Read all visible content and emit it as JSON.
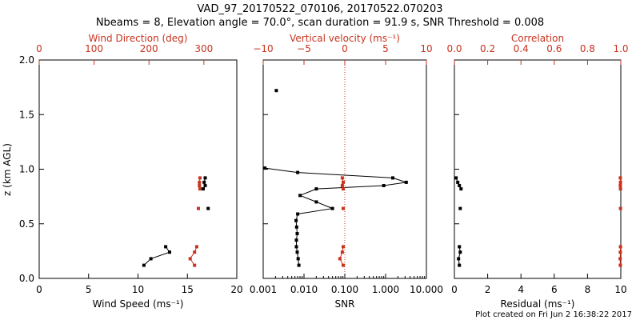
{
  "colors": {
    "primary": "#000000",
    "secondary": "#c8321e"
  },
  "chart_data": {
    "type": "scatter",
    "title": "VAD_97_20170522_070106, 20170522.070203",
    "subtitle": "Nbeams = 8, Elevation angle = 70.0°, scan duration = 91.9 s, SNR Threshold = 0.008",
    "footer": "Plot created on Fri Jun  2 16:38:22 2017",
    "ylabel": "z (km AGL)",
    "ylim": [
      0,
      2
    ],
    "yticks": [
      "0.0",
      "0.5",
      "1.0",
      "1.5",
      "2.0"
    ],
    "panels": [
      {
        "name": "wind",
        "bottom_axis": {
          "label": "Wind Speed (ms⁻¹)",
          "range": [
            0,
            20
          ],
          "ticks": [
            "0",
            "5",
            "10",
            "15",
            "20"
          ],
          "tick_values": [
            0,
            5,
            10,
            15,
            20
          ]
        },
        "top_axis": {
          "label": "Wind Direction (deg)",
          "range": [
            0,
            360
          ],
          "ticks": [
            "0",
            "100",
            "200",
            "300"
          ],
          "tick_values": [
            0,
            100,
            200,
            300
          ]
        },
        "series": [
          {
            "name": "Wind Speed",
            "axis": "bottom",
            "color": "#000000",
            "segments": [
              {
                "x": [
                  10.6,
                  11.3,
                  13.2,
                  12.8
                ],
                "z": [
                  0.12,
                  0.18,
                  0.24,
                  0.29
                ]
              },
              {
                "x": [
                  17.1
                ],
                "z": [
                  0.64
                ]
              },
              {
                "x": [
                  16.6,
                  16.8,
                  16.7,
                  16.8
                ],
                "z": [
                  0.82,
                  0.85,
                  0.88,
                  0.92
                ]
              }
            ]
          },
          {
            "name": "Wind Direction",
            "axis": "top",
            "color": "#c8321e",
            "segments": [
              {
                "x": [
                  283,
                  275,
                  283,
                  287
                ],
                "z": [
                  0.12,
                  0.18,
                  0.24,
                  0.29
                ]
              },
              {
                "x": [
                  290
                ],
                "z": [
                  0.64
                ]
              },
              {
                "x": [
                  293,
                  292,
                  292,
                  293
                ],
                "z": [
                  0.82,
                  0.85,
                  0.88,
                  0.92
                ]
              }
            ]
          }
        ]
      },
      {
        "name": "vertical",
        "bottom_axis": {
          "label": "SNR",
          "scale": "log",
          "range": [
            0.001,
            10
          ],
          "ticks": [
            "0.001",
            "0.010",
            "0.100",
            "1.000",
            "10.000"
          ],
          "tick_values": [
            0.001,
            0.01,
            0.1,
            1,
            10
          ]
        },
        "top_axis": {
          "label": "Vertical velocity (ms⁻¹)",
          "range": [
            -10,
            10
          ],
          "ticks": [
            "−10",
            "−5",
            "0",
            "5",
            "10"
          ],
          "tick_values": [
            -10,
            -5,
            0,
            5,
            10
          ],
          "zero_line": 0
        },
        "series": [
          {
            "name": "SNR",
            "axis": "bottom",
            "color": "#000000",
            "segments": [
              {
                "x": [
                  0.0075,
                  0.0072,
                  0.0068,
                  0.0065,
                  0.0065,
                  0.0068,
                  0.0066,
                  0.0064,
                  0.007,
                  0.05,
                  0.02,
                  0.008,
                  0.02,
                  0.9,
                  3.2,
                  1.5,
                  0.007,
                  0.0011
                ],
                "z": [
                  0.12,
                  0.18,
                  0.24,
                  0.29,
                  0.35,
                  0.41,
                  0.47,
                  0.53,
                  0.59,
                  0.64,
                  0.7,
                  0.76,
                  0.82,
                  0.85,
                  0.88,
                  0.92,
                  0.97,
                  1.01
                ]
              },
              {
                "x": [
                  0.0021
                ],
                "z": [
                  1.72
                ]
              }
            ]
          },
          {
            "name": "Vertical velocity",
            "axis": "top",
            "color": "#c8321e",
            "segments": [
              {
                "x": [
                  -0.2,
                  -0.6,
                  -0.3,
                  -0.2
                ],
                "z": [
                  0.12,
                  0.18,
                  0.24,
                  0.29
                ]
              },
              {
                "x": [
                  -0.2
                ],
                "z": [
                  0.64
                ]
              },
              {
                "x": [
                  -0.2,
                  -0.3,
                  -0.2,
                  -0.3
                ],
                "z": [
                  0.82,
                  0.85,
                  0.88,
                  0.92
                ]
              }
            ]
          }
        ]
      },
      {
        "name": "correlation",
        "bottom_axis": {
          "label": "Residual (ms⁻¹)",
          "range": [
            0,
            10
          ],
          "ticks": [
            "0",
            "2",
            "4",
            "6",
            "8",
            "10"
          ],
          "tick_values": [
            0,
            2,
            4,
            6,
            8,
            10
          ]
        },
        "top_axis": {
          "label": "Correlation",
          "range": [
            0,
            1
          ],
          "ticks": [
            "0.0",
            "0.2",
            "0.4",
            "0.6",
            "0.8",
            "1.0"
          ],
          "tick_values": [
            0,
            0.2,
            0.4,
            0.6,
            0.8,
            1.0
          ]
        },
        "series": [
          {
            "name": "Residual",
            "axis": "bottom",
            "color": "#000000",
            "segments": [
              {
                "x": [
                  0.3,
                  0.25,
                  0.35,
                  0.3
                ],
                "z": [
                  0.12,
                  0.18,
                  0.24,
                  0.29
                ]
              },
              {
                "x": [
                  0.35
                ],
                "z": [
                  0.64
                ]
              },
              {
                "x": [
                  0.4,
                  0.3,
                  0.2,
                  0.1
                ],
                "z": [
                  0.82,
                  0.85,
                  0.88,
                  0.92
                ]
              }
            ]
          },
          {
            "name": "Correlation",
            "axis": "top",
            "color": "#c8321e",
            "segments": [
              {
                "x": [
                  0.997,
                  0.996,
                  0.997,
                  0.998
                ],
                "z": [
                  0.12,
                  0.18,
                  0.24,
                  0.29
                ]
              },
              {
                "x": [
                  0.998
                ],
                "z": [
                  0.64
                ]
              },
              {
                "x": [
                  0.998,
                  0.997,
                  0.998,
                  0.997
                ],
                "z": [
                  0.82,
                  0.85,
                  0.88,
                  0.92
                ]
              }
            ]
          }
        ]
      }
    ]
  }
}
